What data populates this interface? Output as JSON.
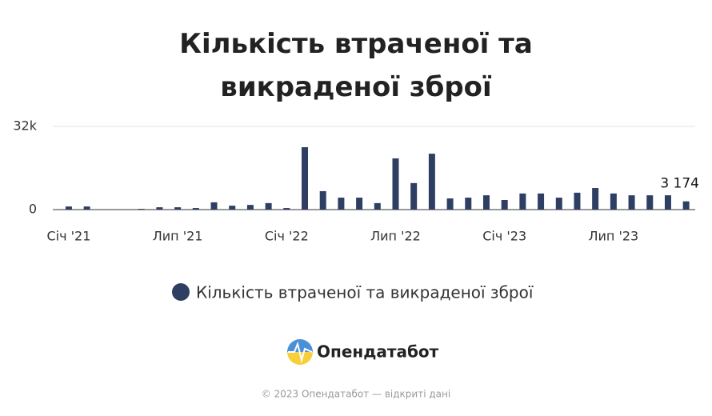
{
  "chart_data": {
    "type": "bar",
    "title": "Кількість втраченої та викраденої зброї",
    "categories": [
      "Січ '21",
      null,
      null,
      null,
      null,
      null,
      "Лип '21",
      null,
      null,
      null,
      null,
      null,
      "Січ '22",
      null,
      null,
      null,
      null,
      null,
      "Лип '22",
      null,
      null,
      null,
      null,
      null,
      "Січ '23",
      null,
      null,
      null,
      null,
      null,
      "Лип '23",
      null,
      null,
      null,
      null
    ],
    "series": [
      {
        "name": "Кількість втраченої та викраденої зброї",
        "color": "#2e3f63",
        "values": [
          1200,
          1200,
          null,
          null,
          300,
          900,
          900,
          600,
          2800,
          1500,
          1800,
          2500,
          600,
          24000,
          7100,
          4600,
          4600,
          2500,
          19700,
          10200,
          21500,
          4300,
          4600,
          5500,
          3700,
          6200,
          6200,
          4600,
          6500,
          8300,
          6200,
          5500,
          5500,
          5500,
          3174
        ],
        "value_labels": [
          null,
          null,
          null,
          null,
          null,
          null,
          null,
          null,
          null,
          null,
          null,
          null,
          null,
          null,
          null,
          null,
          null,
          null,
          null,
          null,
          null,
          null,
          null,
          null,
          null,
          null,
          null,
          null,
          null,
          null,
          null,
          null,
          null,
          null,
          "3 174"
        ]
      }
    ],
    "ylim": [
      0,
      32000
    ],
    "yticks": [
      0,
      {
        "value": 32000,
        "label": "32k"
      }
    ],
    "grid": true,
    "brand": "Опендатабот",
    "footer": "© 2023 Опендатабот — відкриті дані"
  }
}
